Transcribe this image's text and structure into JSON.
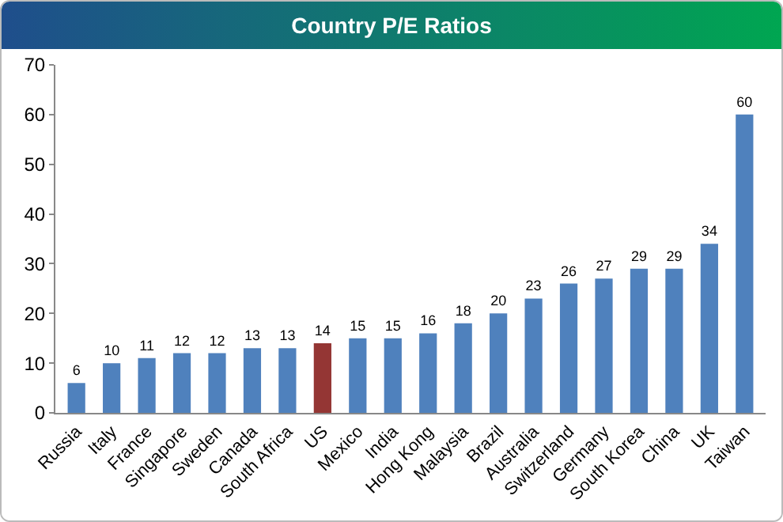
{
  "chart_data": {
    "type": "bar",
    "title": "Country P/E Ratios",
    "categories": [
      "Russia",
      "Italy",
      "France",
      "Singapore",
      "Sweden",
      "Canada",
      "South Africa",
      "US",
      "Mexico",
      "India",
      "Hong Kong",
      "Malaysia",
      "Brazil",
      "Australia",
      "Switzerland",
      "Germany",
      "South Korea",
      "China",
      "UK",
      "Taiwan"
    ],
    "values": [
      6,
      10,
      11,
      12,
      12,
      13,
      13,
      14,
      15,
      15,
      16,
      18,
      20,
      23,
      26,
      27,
      29,
      29,
      34,
      60
    ],
    "colors": [
      "#4f81bd",
      "#4f81bd",
      "#4f81bd",
      "#4f81bd",
      "#4f81bd",
      "#4f81bd",
      "#4f81bd",
      "#943634",
      "#4f81bd",
      "#4f81bd",
      "#4f81bd",
      "#4f81bd",
      "#4f81bd",
      "#4f81bd",
      "#4f81bd",
      "#4f81bd",
      "#4f81bd",
      "#4f81bd",
      "#4f81bd",
      "#4f81bd"
    ],
    "ylim": [
      0,
      70
    ],
    "yticks": [
      0,
      10,
      20,
      30,
      40,
      50,
      60,
      70
    ],
    "grid": false,
    "data_labels": true
  }
}
